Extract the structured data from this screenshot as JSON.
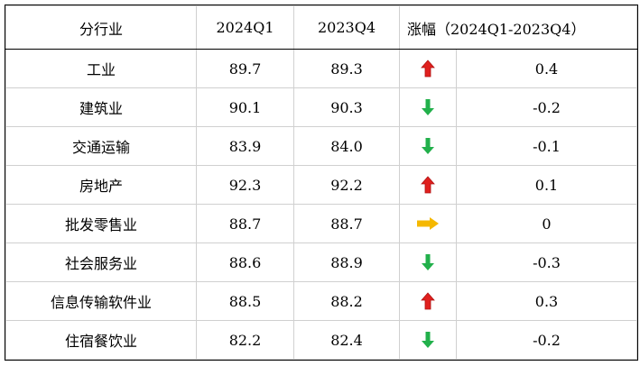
{
  "header": {
    "industry": "分行业",
    "q1": "2024Q1",
    "q2": "2023Q4",
    "change": "涨幅（2024Q1-2023Q4）"
  },
  "colors": {
    "up": "#e0201e",
    "down": "#22b04b",
    "flat": "#f5b800"
  },
  "rows": [
    {
      "industry": "工业",
      "q1": "89.7",
      "q2": "89.3",
      "dir": "up",
      "change": "0.4"
    },
    {
      "industry": "建筑业",
      "q1": "90.1",
      "q2": "90.3",
      "dir": "down",
      "change": "-0.2"
    },
    {
      "industry": "交通运输",
      "q1": "83.9",
      "q2": "84.0",
      "dir": "down",
      "change": "-0.1"
    },
    {
      "industry": "房地产",
      "q1": "92.3",
      "q2": "92.2",
      "dir": "up",
      "change": "0.1"
    },
    {
      "industry": "批发零售业",
      "q1": "88.7",
      "q2": "88.7",
      "dir": "flat",
      "change": "0"
    },
    {
      "industry": "社会服务业",
      "q1": "88.6",
      "q2": "88.9",
      "dir": "down",
      "change": "-0.3"
    },
    {
      "industry": "信息传输软件业",
      "q1": "88.5",
      "q2": "88.2",
      "dir": "up",
      "change": "0.3"
    },
    {
      "industry": "住宿餐饮业",
      "q1": "82.2",
      "q2": "82.4",
      "dir": "down",
      "change": "-0.2"
    }
  ]
}
